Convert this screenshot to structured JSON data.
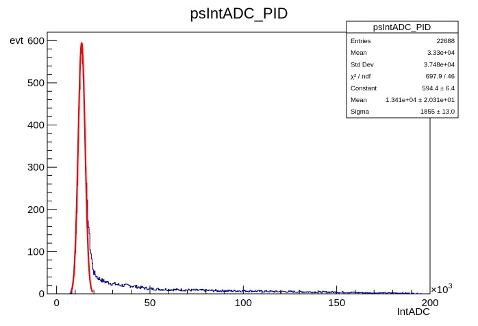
{
  "chart_data": {
    "type": "histogram",
    "title": "psIntADC_PID",
    "xlabel": "IntADC",
    "ylabel": "evt",
    "x_multiplier_label": "×10",
    "x_multiplier_exp": "3",
    "xlim": [
      -5,
      200
    ],
    "ylim": [
      0,
      620
    ],
    "xticks": [
      0,
      50,
      100,
      150,
      200
    ],
    "yticks": [
      0,
      100,
      200,
      300,
      400,
      500,
      600
    ],
    "grid": false,
    "histogram_color": "#000080",
    "fit_color": "#ff0000",
    "histogram_profile": [
      [
        7,
        0
      ],
      [
        8,
        3
      ],
      [
        9,
        30
      ],
      [
        10,
        90
      ],
      [
        11,
        220
      ],
      [
        11.5,
        330
      ],
      [
        12,
        430
      ],
      [
        12.5,
        520
      ],
      [
        13,
        575
      ],
      [
        13.5,
        590
      ],
      [
        14,
        560
      ],
      [
        14.5,
        500
      ],
      [
        15,
        420
      ],
      [
        15.5,
        330
      ],
      [
        16,
        250
      ],
      [
        16.5,
        200
      ],
      [
        17,
        170
      ],
      [
        17.5,
        140
      ],
      [
        18,
        110
      ],
      [
        19,
        75
      ],
      [
        20,
        50
      ],
      [
        22,
        38
      ],
      [
        25,
        30
      ],
      [
        30,
        24
      ],
      [
        35,
        20
      ],
      [
        40,
        19
      ],
      [
        45,
        15
      ],
      [
        50,
        12
      ],
      [
        60,
        10
      ],
      [
        70,
        9
      ],
      [
        80,
        8
      ],
      [
        90,
        7
      ],
      [
        100,
        7
      ],
      [
        110,
        6
      ],
      [
        120,
        5
      ],
      [
        130,
        5
      ],
      [
        140,
        4
      ],
      [
        150,
        4
      ],
      [
        160,
        3
      ],
      [
        170,
        2
      ],
      [
        180,
        2
      ],
      [
        190,
        1
      ],
      [
        197,
        0
      ]
    ],
    "fit": {
      "function": "gaus",
      "constant": 594.4,
      "mean_k": 13.41,
      "sigma_k": 1.855
    },
    "stats_box": {
      "title": "psIntADC_PID",
      "rows": [
        {
          "label": "Entries",
          "value": "22688"
        },
        {
          "label": "Mean",
          "value": "3.33e+04"
        },
        {
          "label": "Std Dev",
          "value": "3.748e+04"
        },
        {
          "label": "χ² / ndf",
          "value": "697.9 / 46"
        },
        {
          "label": "Constant",
          "value": "594.4 ± 6.4"
        },
        {
          "label": "Mean",
          "value": "1.341e+04 ± 2.031e+01"
        },
        {
          "label": "Sigma",
          "value": "1855 ± 13.0"
        }
      ]
    }
  }
}
